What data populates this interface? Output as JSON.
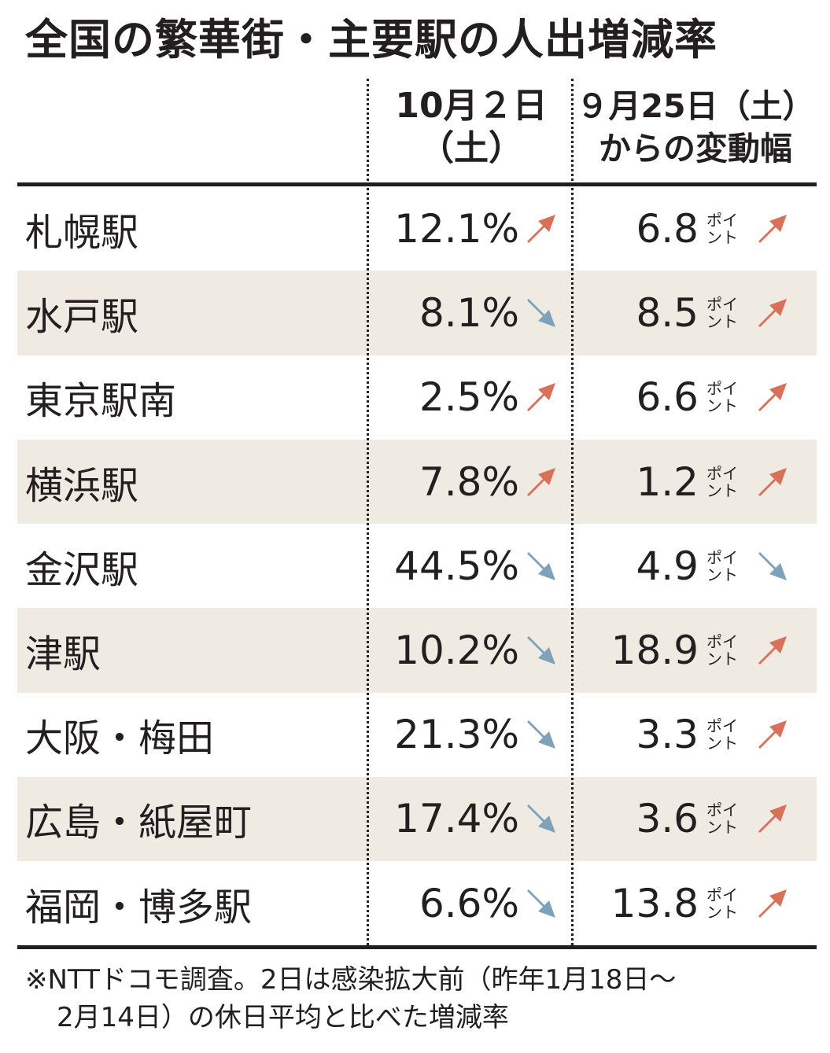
{
  "title": "全国の繁華街・主要駅の人出増減率",
  "headers": {
    "col1_line1": "10月２日",
    "col1_line2": "（土）",
    "col2_line1": "９月25日（土）",
    "col2_line2": "からの変動幅"
  },
  "unit_line1": "ポイ",
  "unit_line2": "ント",
  "colors": {
    "up": "#d9715a",
    "down": "#7fa2bb",
    "shade": "#efebe2"
  },
  "chart_data": {
    "type": "table",
    "columns": [
      "10月２日（土）",
      "９月25日（土）からの変動幅"
    ],
    "rows": [
      {
        "name": "札幌駅",
        "pct": "12.1%",
        "pct_dir": "up",
        "pt": "6.8",
        "pt_dir": "up"
      },
      {
        "name": "水戸駅",
        "pct": "8.1%",
        "pct_dir": "down",
        "pt": "8.5",
        "pt_dir": "up"
      },
      {
        "name": "東京駅南",
        "pct": "2.5%",
        "pct_dir": "up",
        "pt": "6.6",
        "pt_dir": "up"
      },
      {
        "name": "横浜駅",
        "pct": "7.8%",
        "pct_dir": "up",
        "pt": "1.2",
        "pt_dir": "up"
      },
      {
        "name": "金沢駅",
        "pct": "44.5%",
        "pct_dir": "down",
        "pt": "4.9",
        "pt_dir": "down"
      },
      {
        "name": "津駅",
        "pct": "10.2%",
        "pct_dir": "down",
        "pt": "18.9",
        "pt_dir": "up"
      },
      {
        "name": "大阪・梅田",
        "pct": "21.3%",
        "pct_dir": "down",
        "pt": "3.3",
        "pt_dir": "up"
      },
      {
        "name": "広島・紙屋町",
        "pct": "17.4%",
        "pct_dir": "down",
        "pt": "3.6",
        "pt_dir": "up"
      },
      {
        "name": "福岡・博多駅",
        "pct": "6.6%",
        "pct_dir": "down",
        "pt": "13.8",
        "pt_dir": "up"
      }
    ]
  },
  "note_line1": "※NTTドコモ調査。2日は感染拡大前（昨年1月18日～",
  "note_line2": "2月14日）の休日平均と比べた増減率"
}
